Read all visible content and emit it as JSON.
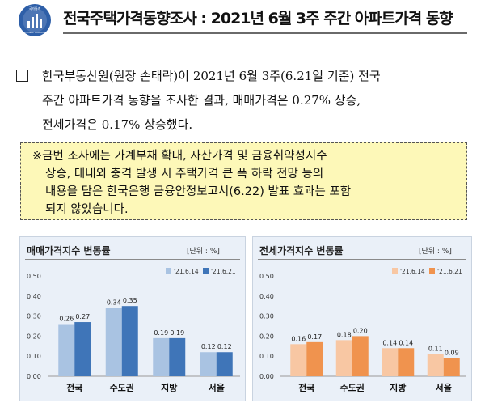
{
  "header": {
    "logo_text_top": "국가통계",
    "logo_text_bottom": "NATIONAL STATISTICS",
    "title": "전국주택가격동향조사 : 2021년 6월 3주 주간 아파트가격 동향"
  },
  "paragraph": {
    "lines": [
      "한국부동산원(원장 손태락)이 2021년 6월 3주(6.21일 기준) 전국",
      "주간 아파트가격 동향을 조사한 결과, 매매가격은 0.27% 상승,",
      "전세가격은 0.17% 상승했다."
    ]
  },
  "note": {
    "lines": [
      "※금번 조사에는 가계부채 확대, 자산가격 및 금융취약성지수",
      "상승, 대내외 충격 발생 시 주택가격 큰 폭 하락 전망 등의",
      "내용을 담은 한국은행 금융안정보고서(6.22) 발표 효과는 포함",
      "되지 않았습니다."
    ]
  },
  "chart_data": [
    {
      "type": "bar",
      "title": "매매가격지수 변동률",
      "unit": "[단위 : %]",
      "categories": [
        "전국",
        "수도권",
        "지방",
        "서울"
      ],
      "series": [
        {
          "name": "'21.6.14",
          "values": [
            0.26,
            0.34,
            0.19,
            0.12
          ],
          "color": "#a9c3e2"
        },
        {
          "name": "'21.6.21",
          "values": [
            0.27,
            0.35,
            0.19,
            0.12
          ],
          "color": "#3f75b8"
        }
      ],
      "ylim": [
        0,
        0.5
      ],
      "yticks": [
        "0.00",
        "0.10",
        "0.20",
        "0.30",
        "0.40",
        "0.50"
      ],
      "value_labels": [
        [
          "0.26",
          "0.34",
          "0.19",
          "0.12"
        ],
        [
          "0.27",
          "0.35",
          "0.19",
          "0.12"
        ]
      ],
      "grid": false,
      "legend": "top-right"
    },
    {
      "type": "bar",
      "title": "전세가격지수 변동률",
      "unit": "[단위 : %]",
      "categories": [
        "전국",
        "수도권",
        "지방",
        "서울"
      ],
      "series": [
        {
          "name": "'21.6.14",
          "values": [
            0.16,
            0.18,
            0.14,
            0.11
          ],
          "color": "#f8c7a3"
        },
        {
          "name": "'21.6.21",
          "values": [
            0.17,
            0.2,
            0.14,
            0.09
          ],
          "color": "#f0934e"
        }
      ],
      "ylim": [
        0,
        0.5
      ],
      "yticks": [
        "0.00",
        "0.10",
        "0.20",
        "0.30",
        "0.40",
        "0.50"
      ],
      "value_labels": [
        [
          "0.16",
          "0.18",
          "0.14",
          "0.11"
        ],
        [
          "0.17",
          "0.20",
          "0.14",
          "0.09"
        ]
      ],
      "grid": false,
      "legend": "top-right"
    }
  ]
}
